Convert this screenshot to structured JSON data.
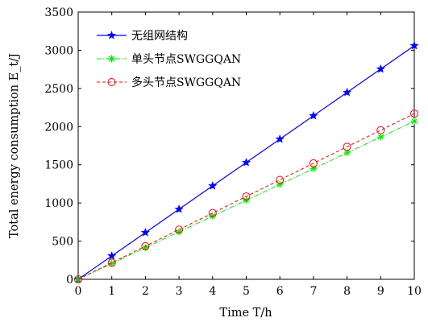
{
  "chart_data": {
    "type": "line",
    "x": [
      0,
      1,
      2,
      3,
      4,
      5,
      6,
      7,
      8,
      9,
      10
    ],
    "xlim": [
      0,
      10
    ],
    "ylim": [
      0,
      3500
    ],
    "x_ticks": [
      "0",
      "1",
      "2",
      "3",
      "4",
      "5",
      "6",
      "7",
      "8",
      "9",
      "10"
    ],
    "y_ticks": [
      "0",
      "500",
      "1000",
      "1500",
      "2000",
      "2500",
      "3000",
      "3500"
    ],
    "xlabel": "Time T/h",
    "ylabel": "Total energy consumption E_t/J",
    "legend_position": "top-left",
    "grid": false,
    "series": [
      {
        "name": "无组网结构",
        "color": "#0000ff",
        "line_style": "solid",
        "marker": "star",
        "values": [
          0,
          306,
          612,
          918,
          1224,
          1530,
          1836,
          2142,
          2448,
          2754,
          3060
        ]
      },
      {
        "name": "单头节点SWGGQAN",
        "color": "#00ee00",
        "line_style": "dash-dot",
        "marker": "asterisk",
        "values": [
          0,
          207,
          414,
          621,
          828,
          1035,
          1242,
          1449,
          1656,
          1863,
          2070
        ]
      },
      {
        "name": "多头节点SWGGQAN",
        "color": "#ff0000",
        "line_style": "dashed",
        "marker": "circle",
        "values": [
          0,
          217,
          434,
          651,
          868,
          1085,
          1302,
          1519,
          1736,
          1953,
          2170
        ]
      }
    ]
  }
}
